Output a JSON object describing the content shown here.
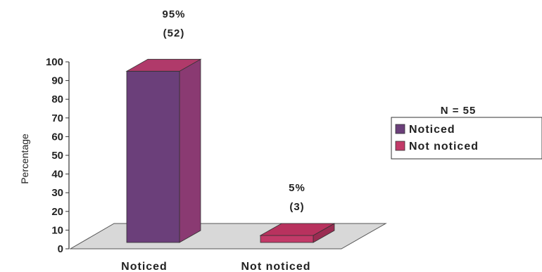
{
  "chart_data": {
    "type": "bar",
    "title": "",
    "xlabel": "",
    "ylabel": "Percentage",
    "ylim": [
      0,
      100
    ],
    "yticks": [
      0,
      10,
      20,
      30,
      40,
      50,
      60,
      70,
      80,
      90,
      100
    ],
    "categories": [
      "Noticed",
      "Not noticed"
    ],
    "values": [
      95,
      5
    ],
    "counts": [
      52,
      3
    ],
    "data_labels": [
      {
        "percent": "95%",
        "count": "(52)"
      },
      {
        "percent": "5%",
        "count": "(3)"
      }
    ],
    "annotation": "N = 55",
    "legend": {
      "position": "right",
      "items": [
        {
          "label": "Noticed",
          "color": "#6b3f7a"
        },
        {
          "label": "Not noticed",
          "color": "#c23a68"
        }
      ]
    },
    "colors": {
      "noticed_front": "#6b3f7a",
      "noticed_top": "#b03a6a",
      "noticed_side": "#8a3a72",
      "notnoticed_front": "#c23a68",
      "notnoticed_top": "#b8325e",
      "notnoticed_side": "#9a2c52",
      "floor": "#d8d8d8"
    }
  }
}
